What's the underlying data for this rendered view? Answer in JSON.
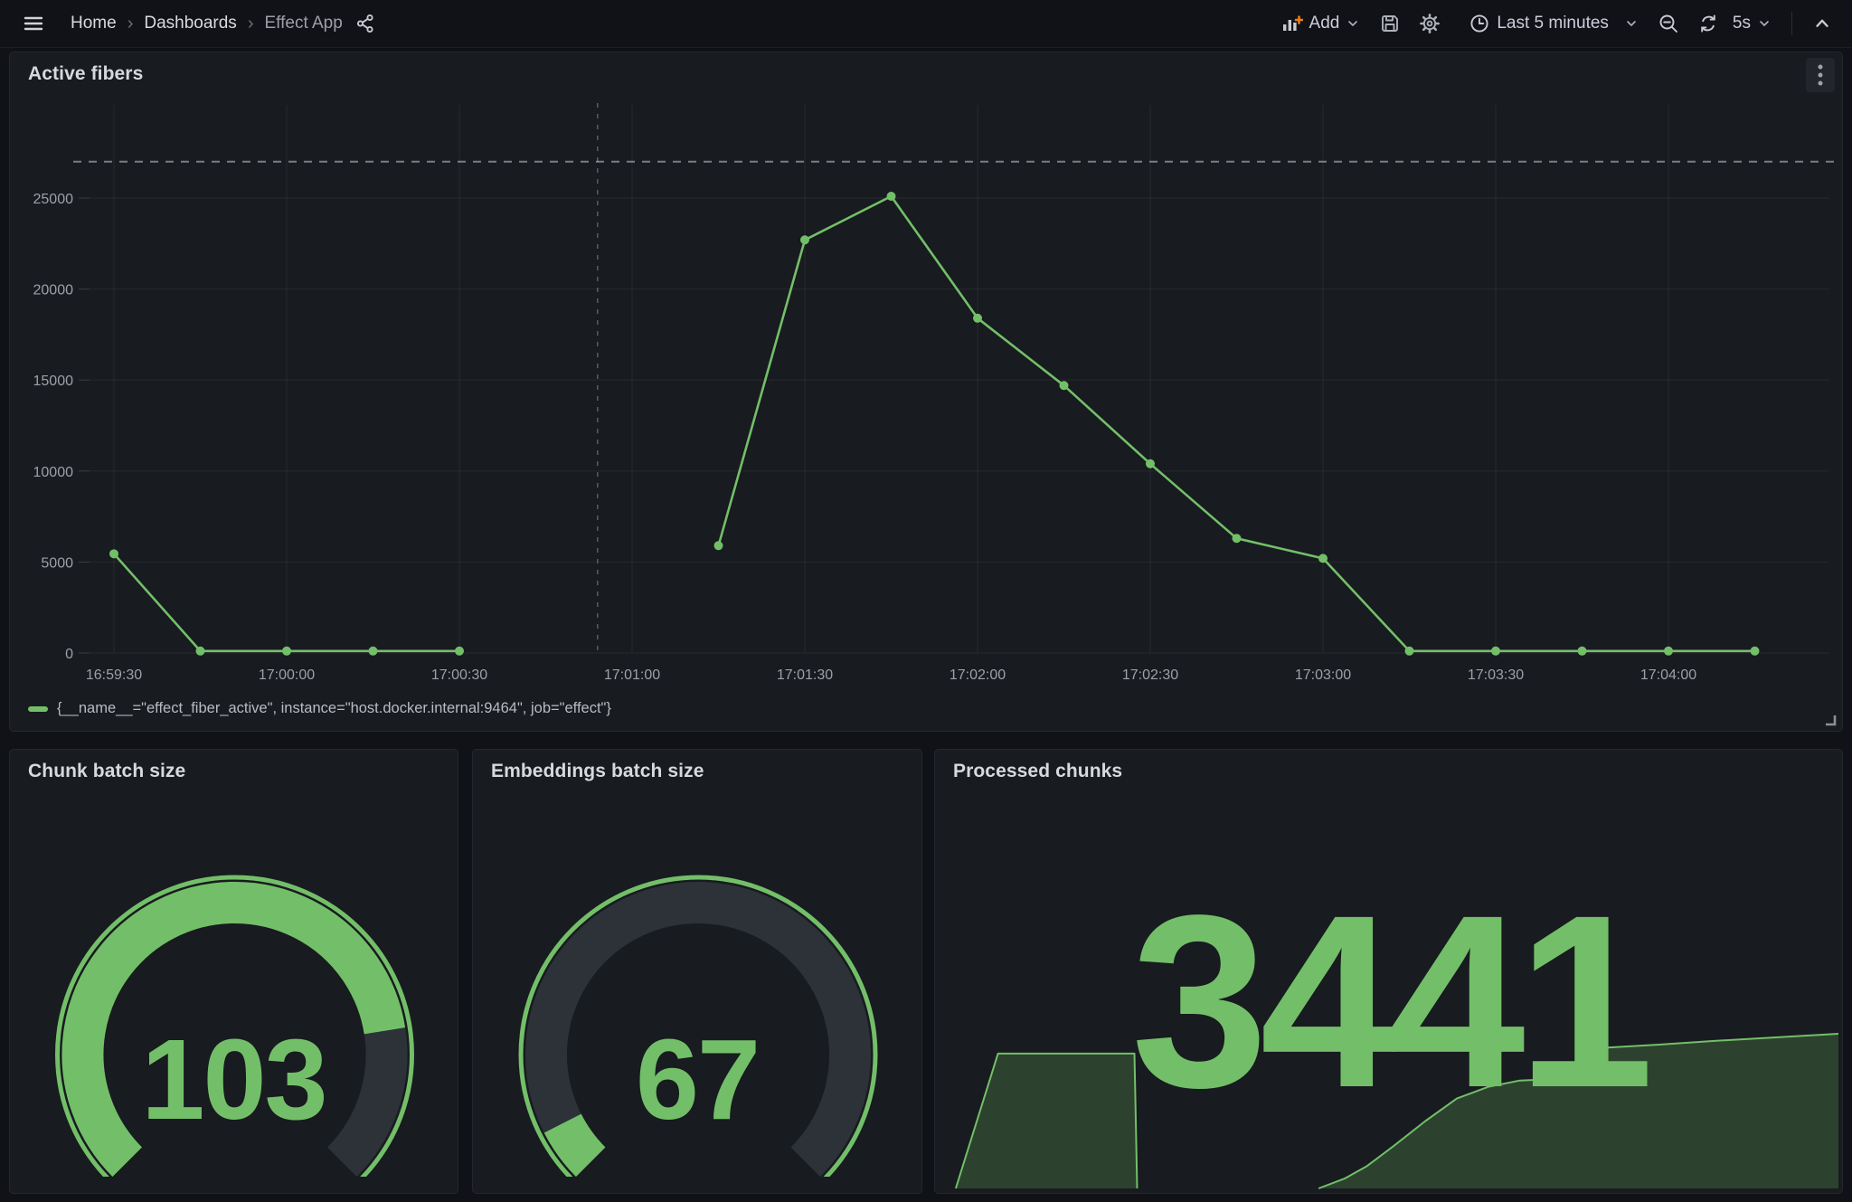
{
  "app": {
    "name": "Grafana dashboard — Effect App"
  },
  "nav": {
    "breadcrumb": [
      {
        "label": "Home"
      },
      {
        "label": "Dashboards"
      },
      {
        "label": "Effect App"
      }
    ],
    "add_label": "Add",
    "time_range_label": "Last 5 minutes",
    "refresh_interval_label": "5s"
  },
  "colors": {
    "green": "#73bf69",
    "sparkline_fill": "#2c422e",
    "orange_plus": "#eb7b18",
    "gauge_track": "#2d3138",
    "page_bg": "#111217",
    "panel_bg": "#181b1f",
    "text_bright": "#d8d9df",
    "text_muted": "#9d9fa7"
  },
  "panels": {
    "active_fibers": {
      "title": "Active fibers",
      "legend_label": "{__name__=\"effect_fiber_active\", instance=\"host.docker.internal:9464\", job=\"effect\"}"
    },
    "chunk_batch_size": {
      "title": "Chunk batch size",
      "value": "103"
    },
    "embeddings_batch_size": {
      "title": "Embeddings batch size",
      "value": "67"
    },
    "processed_chunks": {
      "title": "Processed chunks",
      "value": "3441"
    }
  },
  "chart_data": [
    {
      "id": "active-fibers-timeseries",
      "type": "line",
      "title": "Active fibers",
      "x_tick_labels": [
        "16:59:30",
        "17:00:00",
        "17:00:30",
        "17:01:00",
        "17:01:30",
        "17:02:00",
        "17:02:30",
        "17:03:00",
        "17:03:30",
        "17:04:00"
      ],
      "x_tick_offsets_s": [
        0,
        30,
        60,
        90,
        120,
        150,
        180,
        210,
        240,
        270
      ],
      "y_ticks": [
        0,
        5000,
        10000,
        15000,
        20000,
        25000
      ],
      "ylim": [
        0,
        28800
      ],
      "grid": true,
      "legend_position": "bottom",
      "threshold_dashed_value": 27000,
      "annotation_dashed_at_s": 84,
      "series": [
        {
          "name": "{__name__=\"effect_fiber_active\", instance=\"host.docker.internal:9464\", job=\"effect\"}",
          "color": "#73bf69",
          "points_are": "[seconds_after_16:59:30, value]; split into segments where data gap exists",
          "segments": [
            [
              [
                0,
                5450
              ],
              [
                15,
                110
              ],
              [
                30,
                110
              ],
              [
                45,
                110
              ],
              [
                60,
                110
              ]
            ],
            [
              [
                105,
                5900
              ],
              [
                120,
                22700
              ],
              [
                135,
                25100
              ],
              [
                150,
                18400
              ],
              [
                165,
                14700
              ],
              [
                180,
                10400
              ],
              [
                195,
                6300
              ],
              [
                210,
                5200
              ],
              [
                225,
                110
              ],
              [
                240,
                110
              ],
              [
                255,
                110
              ],
              [
                270,
                110
              ],
              [
                285,
                110
              ]
            ]
          ]
        }
      ]
    },
    {
      "id": "chunk-batch-gauge",
      "type": "gauge",
      "title": "Chunk batch size",
      "value": 103,
      "fill_fraction": 0.8,
      "color": "#73bf69"
    },
    {
      "id": "embeddings-batch-gauge",
      "type": "gauge",
      "title": "Embeddings batch size",
      "value": 67,
      "fill_fraction": 0.067,
      "color": "#73bf69"
    },
    {
      "id": "processed-chunks-stat",
      "type": "area",
      "title": "Processed chunks",
      "value": 3441,
      "sparkline_max": 3441,
      "sparkline_points_are": "[fraction_of_width, value]; two segments separated by a counter reset / gap",
      "sparkline_segments": [
        [
          [
            0.017,
            0
          ],
          [
            0.064,
            3000
          ],
          [
            0.216,
            3000
          ],
          [
            0.219,
            0
          ]
        ],
        [
          [
            0.421,
            0
          ],
          [
            0.45,
            220
          ],
          [
            0.475,
            500
          ],
          [
            0.505,
            950
          ],
          [
            0.54,
            1500
          ],
          [
            0.575,
            2000
          ],
          [
            0.61,
            2260
          ],
          [
            0.645,
            2400
          ],
          [
            0.68,
            2430
          ],
          [
            0.727,
            2430
          ],
          [
            0.73,
            3120
          ],
          [
            0.8,
            3200
          ],
          [
            0.86,
            3280
          ],
          [
            0.93,
            3360
          ],
          [
            1.0,
            3441
          ]
        ]
      ]
    }
  ]
}
